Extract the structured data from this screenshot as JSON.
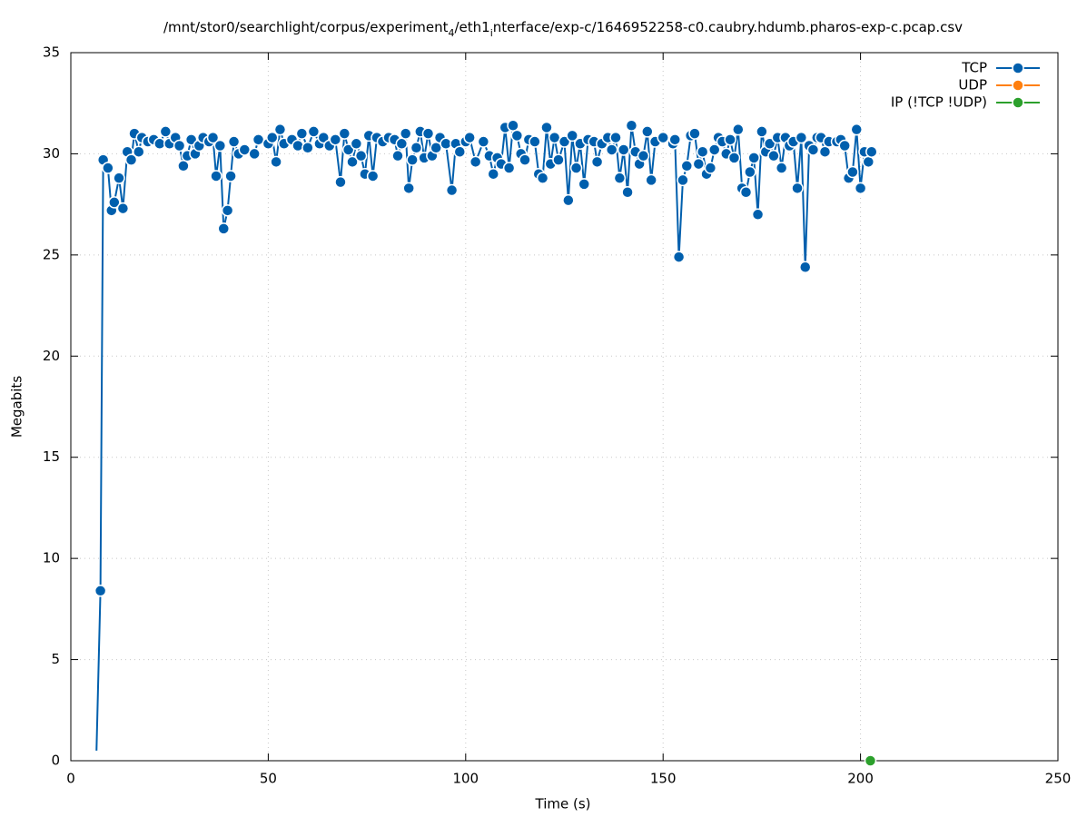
{
  "chart_data": {
    "type": "line",
    "title": [
      "/mnt/stor0/searchlight/corpus/experiment",
      "4",
      "/eth1",
      "i",
      "nterface/exp-c/1646952258-c0.caubry.hdumb.pharos-exp-c.pcap.csv"
    ],
    "xlabel": "Time (s)",
    "ylabel": "Megabits",
    "xlim": [
      0,
      250
    ],
    "xticks": [
      0,
      50,
      100,
      150,
      200,
      250
    ],
    "ylim": [
      0,
      35
    ],
    "yticks": [
      0,
      5,
      10,
      15,
      20,
      25,
      30,
      35
    ],
    "grid": true,
    "legend": "top-right",
    "series": [
      {
        "name": "TCP",
        "color": "#005fad",
        "x": [
          6.5,
          7.5,
          8.2,
          9.4,
          10.3,
          11,
          12.2,
          13.2,
          14.3,
          15.3,
          16.1,
          17.2,
          18,
          19.5,
          21,
          22.5,
          24,
          25,
          26.5,
          27.5,
          28.5,
          29.5,
          30.5,
          31.5,
          32.5,
          33.5,
          35,
          36,
          36.8,
          37.8,
          38.7,
          39.7,
          40.5,
          41.3,
          42.5,
          44,
          46.5,
          47.5,
          50,
          51,
          52,
          53,
          54,
          56,
          57.5,
          58.5,
          60,
          61.5,
          63,
          64,
          65.5,
          67,
          68.3,
          69.3,
          70.3,
          71.3,
          72.3,
          73.5,
          74.5,
          75.5,
          76.5,
          77.5,
          79,
          80.5,
          82,
          82.8,
          83.8,
          84.8,
          85.6,
          86.5,
          87.5,
          88.5,
          89.5,
          90.5,
          91.5,
          92.5,
          93.5,
          95,
          96.5,
          97.5,
          98.5,
          100,
          101,
          102.5,
          104.5,
          106,
          107,
          108,
          109,
          110,
          111,
          112,
          113,
          114,
          115,
          116,
          117.5,
          118.5,
          119.5,
          120.5,
          121.5,
          122.5,
          123.5,
          125,
          126,
          127,
          128,
          129,
          130,
          131,
          132.5,
          133.3,
          134.5,
          136,
          137,
          138,
          139,
          140,
          141,
          142,
          143,
          144,
          145,
          146,
          147,
          148,
          150,
          152.5,
          153,
          154,
          155,
          156,
          157,
          158,
          159,
          160,
          161,
          162,
          163,
          164,
          165,
          166,
          167,
          168,
          169,
          170,
          171,
          172,
          173,
          174,
          175,
          176,
          177,
          178,
          179,
          180,
          181,
          182,
          183,
          184,
          185,
          186,
          187,
          188,
          189,
          190,
          191,
          192,
          194,
          195,
          196,
          197,
          198,
          199,
          200,
          201,
          202,
          202.8
        ],
        "values": [
          0.5,
          8.4,
          29.7,
          29.3,
          27.2,
          27.6,
          28.8,
          27.3,
          30.1,
          29.7,
          31.0,
          30.1,
          30.8,
          30.6,
          30.7,
          30.5,
          31.1,
          30.5,
          30.8,
          30.4,
          29.4,
          29.9,
          30.7,
          30.0,
          30.4,
          30.8,
          30.6,
          30.8,
          28.9,
          30.4,
          26.3,
          27.2,
          28.9,
          30.6,
          30.0,
          30.2,
          30.0,
          30.7,
          30.5,
          30.8,
          29.6,
          31.2,
          30.5,
          30.7,
          30.4,
          31.0,
          30.3,
          31.1,
          30.5,
          30.8,
          30.4,
          30.7,
          28.6,
          31.0,
          30.2,
          29.6,
          30.5,
          29.9,
          29.0,
          30.9,
          28.9,
          30.8,
          30.6,
          30.8,
          30.7,
          29.9,
          30.5,
          31.0,
          28.3,
          29.7,
          30.3,
          31.1,
          29.8,
          31.0,
          29.9,
          30.3,
          30.8,
          30.5,
          28.2,
          30.5,
          30.1,
          30.6,
          30.8,
          29.6,
          30.6,
          29.9,
          29.0,
          29.8,
          29.5,
          31.3,
          29.3,
          31.4,
          30.9,
          30.0,
          29.7,
          30.7,
          30.6,
          29.0,
          28.8,
          31.3,
          29.5,
          30.8,
          29.7,
          30.6,
          27.7,
          30.9,
          29.3,
          30.5,
          28.5,
          30.7,
          30.6,
          29.6,
          30.5,
          30.8,
          30.2,
          30.8,
          28.8,
          30.2,
          28.1,
          31.4,
          30.1,
          29.5,
          29.9,
          31.1,
          28.7,
          30.6,
          30.8,
          30.5,
          30.7,
          24.9,
          28.7,
          29.4,
          30.9,
          31.0,
          29.5,
          30.1,
          29.0,
          29.3,
          30.2,
          30.8,
          30.6,
          30.0,
          30.7,
          29.8,
          31.2,
          28.3,
          28.1,
          29.1,
          29.8,
          27.0,
          31.1,
          30.1,
          30.5,
          29.9,
          30.8,
          29.3,
          30.8,
          30.4,
          30.6,
          28.3,
          30.8,
          24.4,
          30.4,
          30.2,
          30.8,
          30.8,
          30.1,
          30.6,
          30.6,
          30.7,
          30.4,
          28.8,
          29.1,
          31.2,
          28.3,
          30.1,
          29.6,
          30.1
        ]
      },
      {
        "name": "UDP",
        "color": "#ff7f0e",
        "x": [],
        "values": []
      },
      {
        "name": "IP (!TCP  !UDP)",
        "color": "#2ca02c",
        "x": [
          202.5
        ],
        "values": [
          0
        ]
      }
    ]
  }
}
